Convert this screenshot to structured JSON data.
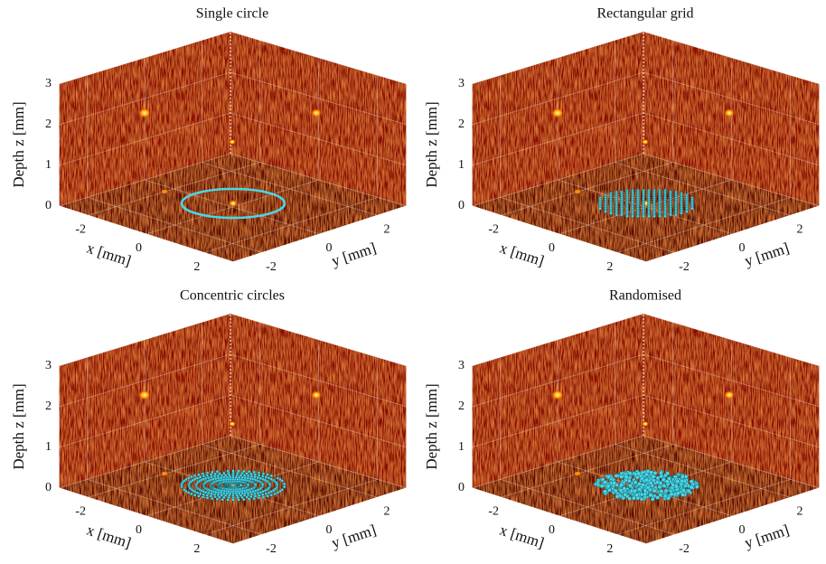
{
  "chart_data": [
    {
      "type": "volume",
      "title": "Single circle",
      "zlabel": "Depth z [mm]",
      "xlabel": "x [mm]",
      "ylabel": "y [mm]",
      "xlim": [
        -3,
        3
      ],
      "ylim": [
        -3,
        3
      ],
      "zlim": [
        0,
        3
      ],
      "xticks": [
        -2,
        0,
        2
      ],
      "yticks": [
        -2,
        0,
        2
      ],
      "zticks": [
        0,
        1,
        2,
        3
      ]
    },
    {
      "type": "volume",
      "title": "Rectangular grid",
      "zlabel": "Depth z [mm]",
      "xlabel": "x [mm]",
      "ylabel": "y [mm]",
      "xlim": [
        -3,
        3
      ],
      "ylim": [
        -3,
        3
      ],
      "zlim": [
        0,
        3
      ],
      "xticks": [
        -2,
        0,
        2
      ],
      "yticks": [
        -2,
        0,
        2
      ],
      "zticks": [
        0,
        1,
        2,
        3
      ]
    },
    {
      "type": "volume",
      "title": "Concentric circles",
      "zlabel": "Depth z [mm]",
      "xlabel": "x [mm]",
      "ylabel": "y [mm]",
      "xlim": [
        -3,
        3
      ],
      "ylim": [
        -3,
        3
      ],
      "zlim": [
        0,
        3
      ],
      "xticks": [
        -2,
        0,
        2
      ],
      "yticks": [
        -2,
        0,
        2
      ],
      "zticks": [
        0,
        1,
        2,
        3
      ]
    },
    {
      "type": "volume",
      "title": "Randomised",
      "zlabel": "Depth z [mm]",
      "xlabel": "x [mm]",
      "ylabel": "y [mm]",
      "xlim": [
        -3,
        3
      ],
      "ylim": [
        -3,
        3
      ],
      "zlim": [
        0,
        3
      ],
      "xticks": [
        -2,
        0,
        2
      ],
      "yticks": [
        -2,
        0,
        2
      ],
      "zticks": [
        0,
        1,
        2,
        3
      ]
    }
  ]
}
